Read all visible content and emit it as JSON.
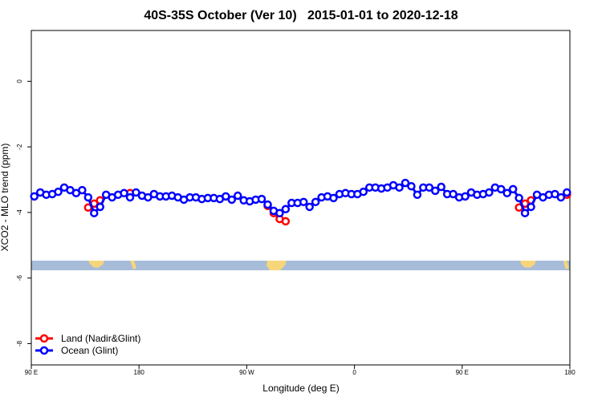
{
  "chart_data": {
    "type": "line",
    "title": "40S-35S October (Ver 10)   2015-01-01 to 2020-12-18",
    "x_label": "Longitude (deg E)",
    "y_label": "XCO2 - MLO trend (ppm)",
    "xlim": [
      90,
      540
    ],
    "ylim": [
      -8.65,
      1.55
    ],
    "xticks": [
      {
        "value": 90,
        "label": "90 E"
      },
      180,
      {
        "value": 270,
        "label": "90 W"
      },
      {
        "value": 360,
        "label": "0"
      },
      {
        "value": 450,
        "label": "90 E"
      },
      {
        "value": 540,
        "label": "180"
      }
    ],
    "yticks": [
      0,
      -2,
      -4,
      -6,
      -8
    ],
    "legend": "bottom-left",
    "series": [
      {
        "name": "Land (Nadir&Glint)",
        "color": "#ff0000",
        "x": [
          137.5,
          142.5,
          147.5,
          152.5,
          172.5,
          177.5,
          287.5,
          292.5,
          297.5,
          302.5,
          307.5,
          497.5,
          502.5,
          507.5,
          512.5,
          537.5
        ],
        "values": [
          -3.85,
          -3.73,
          -3.63,
          null,
          -3.41,
          null,
          -3.8,
          -4.02,
          -4.2,
          -4.27,
          null,
          -3.85,
          -3.73,
          -3.63,
          null,
          -3.46
        ]
      },
      {
        "name": "Ocean (Glint)",
        "color": "#0000ff",
        "x": [
          92.5,
          97.5,
          102.5,
          107.5,
          112.5,
          117.5,
          122.5,
          127.5,
          132.5,
          137.5,
          142.5,
          147.5,
          152.5,
          157.5,
          162.5,
          167.5,
          172.5,
          177.5,
          182.5,
          187.5,
          192.5,
          197.5,
          202.5,
          207.5,
          212.5,
          217.5,
          222.5,
          227.5,
          232.5,
          237.5,
          242.5,
          247.5,
          252.5,
          257.5,
          262.5,
          267.5,
          272.5,
          277.5,
          282.5,
          287.5,
          292.5,
          297.5,
          302.5,
          307.5,
          312.5,
          317.5,
          322.5,
          327.5,
          332.5,
          337.5,
          342.5,
          347.5,
          352.5,
          357.5,
          362.5,
          367.5,
          372.5,
          377.5,
          382.5,
          387.5,
          392.5,
          397.5,
          402.5,
          407.5,
          412.5,
          417.5,
          422.5,
          427.5,
          432.5,
          437.5,
          442.5,
          447.5,
          452.5,
          457.5,
          462.5,
          467.5,
          472.5,
          477.5,
          482.5,
          487.5,
          492.5,
          497.5,
          502.5,
          507.5,
          512.5,
          517.5,
          522.5,
          527.5,
          532.5,
          537.5
        ],
        "values": [
          -3.51,
          -3.39,
          -3.46,
          -3.44,
          -3.37,
          -3.24,
          -3.32,
          -3.41,
          -3.32,
          -3.54,
          -4.02,
          -3.83,
          -3.46,
          -3.54,
          -3.46,
          -3.41,
          -3.54,
          -3.39,
          -3.49,
          -3.54,
          -3.44,
          -3.51,
          -3.51,
          -3.49,
          -3.54,
          -3.61,
          -3.54,
          -3.54,
          -3.59,
          -3.56,
          -3.56,
          -3.59,
          -3.51,
          -3.61,
          -3.49,
          -3.63,
          -3.66,
          -3.61,
          -3.59,
          -3.76,
          -3.95,
          -4.02,
          -3.9,
          -3.71,
          -3.71,
          -3.68,
          -3.83,
          -3.68,
          -3.54,
          -3.51,
          -3.56,
          -3.44,
          -3.41,
          -3.44,
          -3.44,
          -3.37,
          -3.24,
          -3.24,
          -3.27,
          -3.24,
          -3.17,
          -3.24,
          -3.1,
          -3.2,
          -3.46,
          -3.24,
          -3.24,
          -3.34,
          -3.22,
          -3.44,
          -3.44,
          -3.54,
          -3.51,
          -3.39,
          -3.46,
          -3.44,
          -3.39,
          -3.24,
          -3.29,
          -3.41,
          -3.29,
          -3.56,
          -4.02,
          -3.83,
          -3.46,
          -3.54,
          -3.46,
          -3.44,
          -3.54,
          -3.39
        ]
      }
    ]
  }
}
